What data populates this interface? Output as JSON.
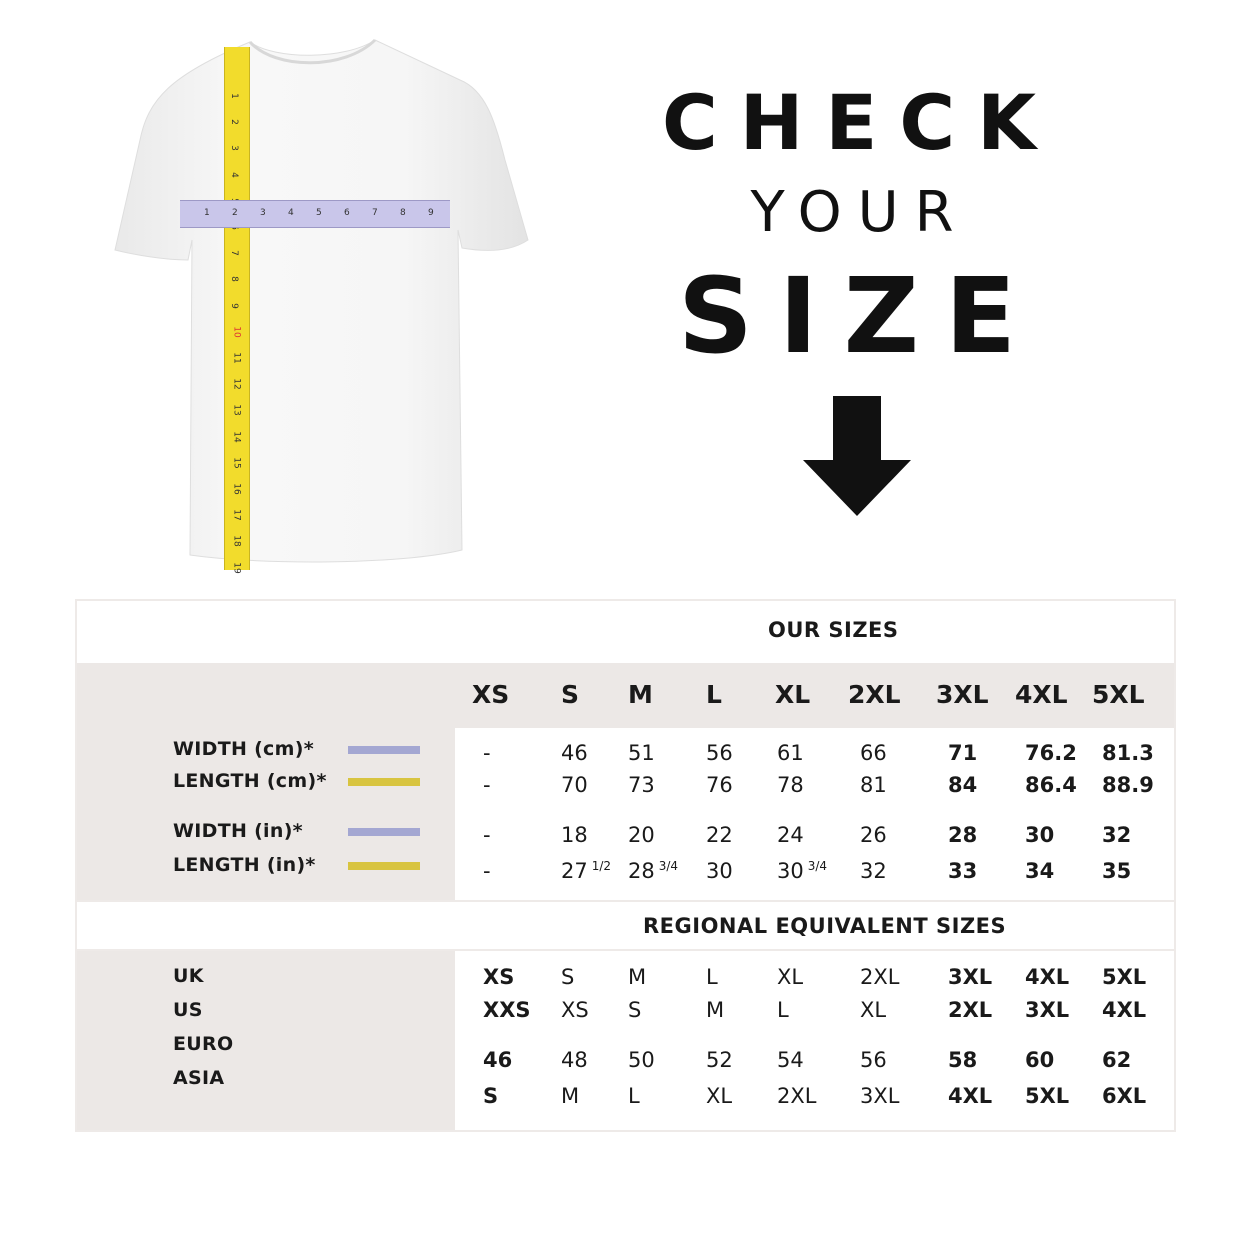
{
  "heading": {
    "line1": "CHECK",
    "line2": "YOUR",
    "line3": "SIZE",
    "arrow_icon": "down-arrow"
  },
  "colors": {
    "width_swatch": "#a4a7d2",
    "length_swatch": "#d8c440",
    "panel_grey": "#ece8e6",
    "tape_yellow": "#f2dc2c",
    "tape_purple": "#c9c6ea"
  },
  "vertical_tape_numbers": [
    "1",
    "2",
    "3",
    "4",
    "5",
    "6",
    "7",
    "8",
    "9",
    "10",
    "11",
    "12",
    "13",
    "14",
    "15",
    "16",
    "17",
    "18",
    "19"
  ],
  "horizontal_tape_numbers": [
    "1",
    "2",
    "3",
    "4",
    "5",
    "6",
    "7",
    "8",
    "9"
  ],
  "table": {
    "our_sizes_title": "OUR SIZES",
    "sizes": [
      "XS",
      "S",
      "M",
      "L",
      "XL",
      "2XL",
      "3XL",
      "4XL",
      "5XL"
    ],
    "measurements": [
      {
        "label": "WIDTH (cm)*",
        "swatch": "width",
        "cells": [
          {
            "v": "-"
          },
          {
            "v": "46"
          },
          {
            "v": "51"
          },
          {
            "v": "56"
          },
          {
            "v": "61"
          },
          {
            "v": "66"
          },
          {
            "v": "71"
          },
          {
            "v": "76.2"
          },
          {
            "v": "81.3"
          }
        ]
      },
      {
        "label": "LENGTH (cm)*",
        "swatch": "length",
        "cells": [
          {
            "v": "-"
          },
          {
            "v": "70"
          },
          {
            "v": "73"
          },
          {
            "v": "76"
          },
          {
            "v": "78"
          },
          {
            "v": "81"
          },
          {
            "v": "84"
          },
          {
            "v": "86.4"
          },
          {
            "v": "88.9"
          }
        ]
      },
      {
        "label": "WIDTH (in)*",
        "swatch": "width",
        "cells": [
          {
            "v": "-"
          },
          {
            "v": "18"
          },
          {
            "v": "20"
          },
          {
            "v": "22"
          },
          {
            "v": "24"
          },
          {
            "v": "26"
          },
          {
            "v": "28"
          },
          {
            "v": "30"
          },
          {
            "v": "32"
          }
        ]
      },
      {
        "label": "LENGTH (in)*",
        "swatch": "length",
        "cells": [
          {
            "v": "-"
          },
          {
            "v": "27",
            "f": "1/2"
          },
          {
            "v": "28",
            "f": "3/4"
          },
          {
            "v": "30"
          },
          {
            "v": "30",
            "f": "3/4"
          },
          {
            "v": "32"
          },
          {
            "v": "33"
          },
          {
            "v": "34"
          },
          {
            "v": "35"
          }
        ]
      }
    ],
    "regional_title": "REGIONAL EQUIVALENT SIZES",
    "regional": [
      {
        "label": "UK",
        "cells": [
          {
            "v": "XS"
          },
          {
            "v": "S"
          },
          {
            "v": "M"
          },
          {
            "v": "L"
          },
          {
            "v": "XL"
          },
          {
            "v": "2XL"
          },
          {
            "v": "3XL"
          },
          {
            "v": "4XL"
          },
          {
            "v": "5XL"
          }
        ]
      },
      {
        "label": "US",
        "cells": [
          {
            "v": "XXS"
          },
          {
            "v": "XS"
          },
          {
            "v": "S"
          },
          {
            "v": "M"
          },
          {
            "v": "L"
          },
          {
            "v": "XL"
          },
          {
            "v": "2XL"
          },
          {
            "v": "3XL"
          },
          {
            "v": "4XL"
          }
        ]
      },
      {
        "label": "EURO",
        "cells": [
          {
            "v": "46"
          },
          {
            "v": "48"
          },
          {
            "v": "50"
          },
          {
            "v": "52"
          },
          {
            "v": "54"
          },
          {
            "v": "56"
          },
          {
            "v": "58"
          },
          {
            "v": "60"
          },
          {
            "v": "62"
          }
        ]
      },
      {
        "label": "ASIA",
        "cells": [
          {
            "v": "S"
          },
          {
            "v": "M"
          },
          {
            "v": "L"
          },
          {
            "v": "XL"
          },
          {
            "v": "2XL"
          },
          {
            "v": "3XL"
          },
          {
            "v": "4XL"
          },
          {
            "v": "5XL"
          },
          {
            "v": "6XL"
          }
        ]
      }
    ]
  }
}
